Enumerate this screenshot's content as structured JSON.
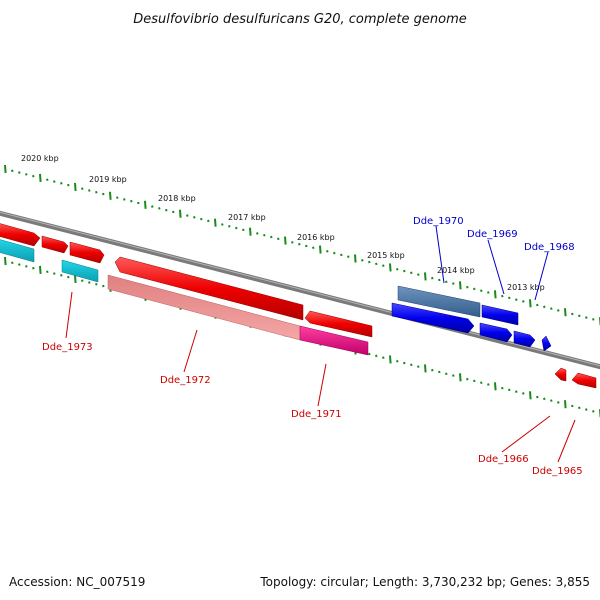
{
  "title": "Desulfovibrio desulfuricans G20, complete genome",
  "footer": {
    "accession": "Accession: NC_007519",
    "summary": "Topology: circular; Length: 3,730,232 bp; Genes: 3,855"
  },
  "scale_labels": [
    "2020 kbp",
    "2019 kbp",
    "2018 kbp",
    "2017 kbp",
    "2016 kbp",
    "2015 kbp",
    "2014 kbp",
    "2013 kbp"
  ],
  "genes_forward": [
    "Dde_1970",
    "Dde_1969",
    "Dde_1968"
  ],
  "genes_reverse": [
    "Dde_1973",
    "Dde_1972",
    "Dde_1971",
    "Dde_1966",
    "Dde_1965"
  ],
  "colors": {
    "backbone": "#7a7a7a",
    "scale_ticks": "#1a8a1a",
    "reverse_strand": "#ff0000",
    "forward_strand": "#0000ff",
    "label_red": "#cc0000",
    "label_blue": "#0000cc"
  }
}
